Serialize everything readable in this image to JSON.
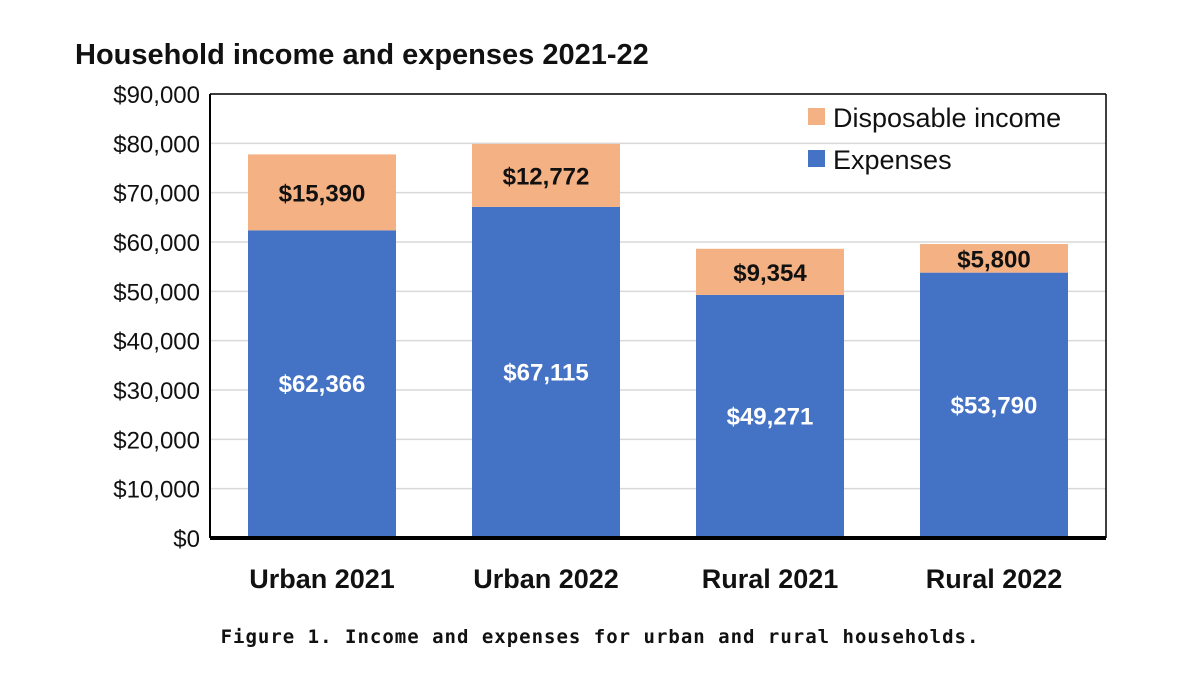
{
  "chart_data": {
    "type": "bar",
    "stacked": true,
    "title": "Household income and expenses 2021-22",
    "categories": [
      "Urban 2021",
      "Urban 2022",
      "Rural 2021",
      "Rural 2022"
    ],
    "series": [
      {
        "name": "Expenses",
        "color": "#4472C4",
        "values": [
          62366,
          67115,
          49271,
          53790
        ],
        "labels": [
          "$62,366",
          "$67,115",
          "$49,271",
          "$53,790"
        ]
      },
      {
        "name": "Disposable income",
        "color": "#F4B183",
        "values": [
          15390,
          12772,
          9354,
          5800
        ],
        "labels": [
          "$15,390",
          "$12,772",
          "$9,354",
          "$5,800"
        ]
      }
    ],
    "yticks": [
      0,
      10000,
      20000,
      30000,
      40000,
      50000,
      60000,
      70000,
      80000,
      90000
    ],
    "ytick_labels": [
      "$0",
      "$10,000",
      "$20,000",
      "$30,000",
      "$40,000",
      "$50,000",
      "$60,000",
      "$70,000",
      "$80,000",
      "$90,000"
    ],
    "ylim": [
      0,
      90000
    ],
    "xlabel": "",
    "ylabel": "",
    "grid": true,
    "legend_position": "top-right",
    "legend": [
      "Disposable income",
      "Expenses"
    ]
  },
  "caption": "Figure 1. Income and expenses for urban and rural households."
}
